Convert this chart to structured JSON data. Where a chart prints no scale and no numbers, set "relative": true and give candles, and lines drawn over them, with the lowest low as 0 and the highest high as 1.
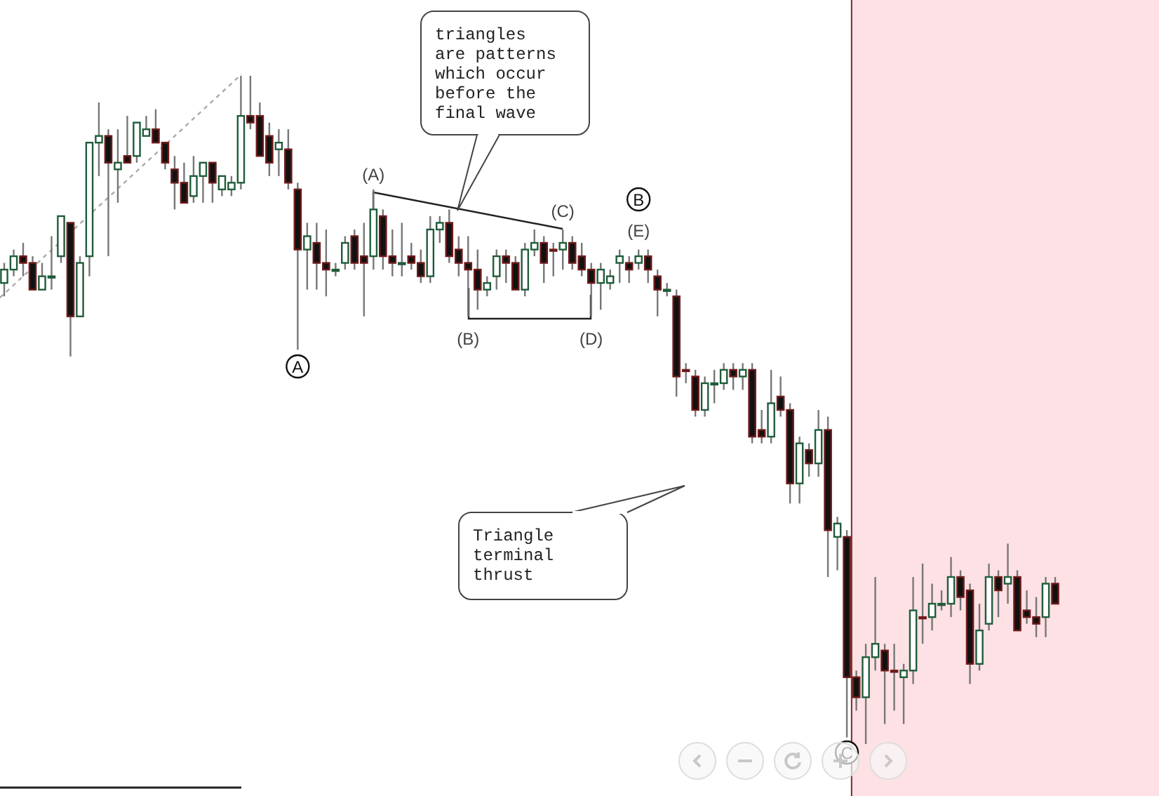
{
  "chart_data": {
    "type": "candlestick",
    "relative": true,
    "colors": [
      "#1f5c3a",
      "#1f5c3a",
      "#6e1a1a",
      "#6e1a1a",
      "#1f5c3a",
      "#1f5c3a",
      "#1f5c3a",
      "#6e1a1a",
      "#1f5c3a",
      "#1f5c3a",
      "#1f5c3a",
      "#6e1a1a",
      "#1f5c3a",
      "#6e1a1a",
      "#1f5c3a",
      "#1f5c3a",
      "#6e1a1a",
      "#6e1a1a",
      "#6e1a1a",
      "#6e1a1a",
      "#1f5c3a",
      "#1f5c3a",
      "#6e1a1a",
      "#1f5c3a",
      "#1f5c3a",
      "#1f5c3a",
      "#6e1a1a",
      "#6e1a1a",
      "#6e1a1a",
      "#1f5c3a",
      "#6e1a1a",
      "#6e1a1a",
      "#1f5c3a",
      "#6e1a1a",
      "#6e1a1a",
      "#1f5c3a",
      "#1f5c3a",
      "#6e1a1a",
      "#6e1a1a",
      "#1f5c3a",
      "#6e1a1a",
      "#6e1a1a",
      "#1f5c3a",
      "#6e1a1a",
      "#6e1a1a",
      "#1f5c3a",
      "#1f5c3a",
      "#6e1a1a",
      "#6e1a1a",
      "#6e1a1a",
      "#6e1a1a",
      "#1f5c3a",
      "#1f5c3a",
      "#6e1a1a",
      "#6e1a1a",
      "#1f5c3a",
      "#1f5c3a",
      "#6e1a1a",
      "#6e1a1a",
      "#1f5c3a",
      "#6e1a1a",
      "#6e1a1a",
      "#6e1a1a",
      "#1f5c3a",
      "#1f5c3a",
      "#1f5c3a",
      "#6e1a1a",
      "#1f5c3a",
      "#6e1a1a",
      "#6e1a1a",
      "#1f5c3a",
      "#6e1a1a",
      "#6e1a1a",
      "#6e1a1a",
      "#1f5c3a",
      "#1f5c3a",
      "#1f5c3a",
      "#6e1a1a",
      "#1f5c3a",
      "#6e1a1a",
      "#6e1a1a",
      "#1f5c3a",
      "#6e1a1a",
      "#6e1a1a",
      "#1f5c3a",
      "#6e1a1a",
      "#1f5c3a",
      "#6e1a1a",
      "#1f5c3a",
      "#6e1a1a",
      "#6e1a1a",
      "#1f5c3a",
      "#1f5c3a",
      "#6e1a1a",
      "#6e1a1a",
      "#1f5c3a",
      "#1f5c3a",
      "#6e1a1a",
      "#1f5c3a",
      "#1f5c3a",
      "#1f5c3a",
      "#6e1a1a",
      "#6e1a1a",
      "#1f5c3a",
      "#1f5c3a",
      "#6e1a1a",
      "#1f5c3a",
      "#6e1a1a",
      "#6e1a1a",
      "#6e1a1a",
      "#1f5c3a",
      "#6e1a1a"
    ],
    "categories": [
      null,
      null,
      null,
      null,
      null,
      null,
      null,
      null,
      null,
      null,
      null,
      null,
      null,
      null,
      null,
      null,
      null,
      null,
      null,
      null,
      null,
      null,
      null,
      null,
      null,
      null,
      null,
      null,
      null,
      null,
      null,
      null,
      null,
      null,
      null,
      null,
      null,
      null,
      null,
      null,
      null,
      null,
      null,
      null,
      null,
      null,
      null,
      null,
      null,
      null,
      null,
      null,
      null,
      null,
      null,
      null,
      null,
      null,
      null,
      null,
      null,
      null,
      null,
      null,
      null,
      null,
      null,
      null,
      null,
      null,
      null,
      null,
      null,
      null,
      null,
      null,
      null,
      null,
      null,
      null,
      null,
      null,
      null,
      null,
      null,
      null,
      null,
      null,
      null,
      null,
      null,
      null,
      null,
      null,
      null,
      null,
      null,
      null,
      null,
      null,
      null,
      null,
      null,
      null,
      null,
      null,
      null,
      null,
      null,
      null,
      null,
      null
    ],
    "ohlc": [
      [
        0.69,
        0.72,
        0.67,
        0.71
      ],
      [
        0.71,
        0.74,
        0.7,
        0.73
      ],
      [
        0.73,
        0.75,
        0.7,
        0.72
      ],
      [
        0.72,
        0.73,
        0.68,
        0.68
      ],
      [
        0.68,
        0.72,
        0.68,
        0.7
      ],
      [
        0.7,
        0.76,
        0.68,
        0.7
      ],
      [
        0.73,
        0.79,
        0.72,
        0.79
      ],
      [
        0.78,
        0.78,
        0.58,
        0.64
      ],
      [
        0.64,
        0.73,
        0.64,
        0.72
      ],
      [
        0.73,
        0.9,
        0.7,
        0.9
      ],
      [
        0.9,
        0.96,
        0.85,
        0.91
      ],
      [
        0.91,
        0.92,
        0.73,
        0.87
      ],
      [
        0.86,
        0.92,
        0.81,
        0.87
      ],
      [
        0.88,
        0.94,
        0.87,
        0.87
      ],
      [
        0.88,
        0.93,
        0.87,
        0.93
      ],
      [
        0.91,
        0.94,
        0.91,
        0.92
      ],
      [
        0.92,
        0.95,
        0.9,
        0.9
      ],
      [
        0.9,
        0.9,
        0.86,
        0.87
      ],
      [
        0.86,
        0.88,
        0.8,
        0.84
      ],
      [
        0.84,
        0.87,
        0.81,
        0.81
      ],
      [
        0.82,
        0.88,
        0.81,
        0.85
      ],
      [
        0.85,
        0.87,
        0.81,
        0.87
      ],
      [
        0.87,
        0.87,
        0.81,
        0.84
      ],
      [
        0.83,
        0.85,
        0.82,
        0.85
      ],
      [
        0.83,
        0.85,
        0.82,
        0.84
      ],
      [
        0.84,
        1.0,
        0.83,
        0.94
      ],
      [
        0.94,
        1.0,
        0.92,
        0.93
      ],
      [
        0.94,
        0.96,
        0.88,
        0.88
      ],
      [
        0.91,
        0.93,
        0.85,
        0.87
      ],
      [
        0.89,
        0.92,
        0.85,
        0.9
      ],
      [
        0.89,
        0.92,
        0.83,
        0.84
      ],
      [
        0.83,
        0.84,
        0.59,
        0.74
      ],
      [
        0.74,
        0.78,
        0.68,
        0.76
      ],
      [
        0.75,
        0.78,
        0.68,
        0.72
      ],
      [
        0.72,
        0.77,
        0.67,
        0.71
      ],
      [
        0.71,
        0.72,
        0.7,
        0.71
      ],
      [
        0.72,
        0.76,
        0.71,
        0.75
      ],
      [
        0.76,
        0.77,
        0.71,
        0.72
      ],
      [
        0.73,
        0.78,
        0.64,
        0.72
      ],
      [
        0.73,
        0.83,
        0.71,
        0.8
      ],
      [
        0.79,
        0.8,
        0.71,
        0.73
      ],
      [
        0.73,
        0.77,
        0.7,
        0.72
      ],
      [
        0.72,
        0.78,
        0.7,
        0.72
      ],
      [
        0.73,
        0.75,
        0.71,
        0.72
      ],
      [
        0.72,
        0.74,
        0.69,
        0.7
      ],
      [
        0.7,
        0.79,
        0.69,
        0.77
      ],
      [
        0.77,
        0.79,
        0.75,
        0.78
      ],
      [
        0.78,
        0.8,
        0.72,
        0.73
      ],
      [
        0.74,
        0.76,
        0.7,
        0.72
      ],
      [
        0.72,
        0.76,
        0.64,
        0.71
      ],
      [
        0.71,
        0.74,
        0.65,
        0.68
      ],
      [
        0.68,
        0.7,
        0.67,
        0.69
      ],
      [
        0.7,
        0.74,
        0.68,
        0.73
      ],
      [
        0.73,
        0.74,
        0.69,
        0.72
      ],
      [
        0.72,
        0.73,
        0.68,
        0.68
      ],
      [
        0.68,
        0.75,
        0.67,
        0.74
      ],
      [
        0.74,
        0.77,
        0.73,
        0.75
      ],
      [
        0.75,
        0.76,
        0.69,
        0.72
      ],
      [
        0.74,
        0.75,
        0.7,
        0.74
      ],
      [
        0.74,
        0.77,
        0.71,
        0.75
      ],
      [
        0.75,
        0.76,
        0.71,
        0.72
      ],
      [
        0.73,
        0.75,
        0.7,
        0.71
      ],
      [
        0.71,
        0.72,
        0.64,
        0.69
      ],
      [
        0.69,
        0.72,
        0.65,
        0.71
      ],
      [
        0.69,
        0.71,
        0.68,
        0.7
      ],
      [
        0.72,
        0.74,
        0.69,
        0.73
      ],
      [
        0.72,
        0.73,
        0.69,
        0.71
      ],
      [
        0.72,
        0.74,
        0.71,
        0.73
      ],
      [
        0.73,
        0.74,
        0.69,
        0.71
      ],
      [
        0.7,
        0.71,
        0.64,
        0.68
      ],
      [
        0.68,
        0.69,
        0.67,
        0.68
      ],
      [
        0.67,
        0.68,
        0.52,
        0.55
      ],
      [
        0.56,
        0.57,
        0.54,
        0.56
      ],
      [
        0.55,
        0.56,
        0.49,
        0.5
      ],
      [
        0.5,
        0.55,
        0.49,
        0.54
      ],
      [
        0.54,
        0.56,
        0.51,
        0.54
      ],
      [
        0.54,
        0.57,
        0.53,
        0.56
      ],
      [
        0.56,
        0.57,
        0.53,
        0.55
      ],
      [
        0.55,
        0.57,
        0.53,
        0.56
      ],
      [
        0.56,
        0.57,
        0.45,
        0.46
      ],
      [
        0.47,
        0.5,
        0.45,
        0.46
      ],
      [
        0.46,
        0.56,
        0.45,
        0.51
      ],
      [
        0.52,
        0.55,
        0.49,
        0.5
      ],
      [
        0.5,
        0.51,
        0.36,
        0.39
      ],
      [
        0.39,
        0.46,
        0.36,
        0.45
      ],
      [
        0.44,
        0.45,
        0.4,
        0.42
      ],
      [
        0.42,
        0.5,
        0.4,
        0.47
      ],
      [
        0.47,
        0.49,
        0.25,
        0.32
      ],
      [
        0.31,
        0.34,
        0.26,
        0.33
      ],
      [
        0.31,
        0.32,
        0.01,
        0.1
      ],
      [
        0.1,
        0.11,
        0.05,
        0.07
      ],
      [
        0.07,
        0.15,
        0.0,
        0.13
      ],
      [
        0.13,
        0.25,
        0.11,
        0.15
      ],
      [
        0.14,
        0.15,
        0.03,
        0.11
      ],
      [
        0.11,
        0.15,
        0.05,
        0.11
      ],
      [
        0.1,
        0.12,
        0.03,
        0.11
      ],
      [
        0.11,
        0.25,
        0.09,
        0.2
      ],
      [
        0.19,
        0.27,
        0.15,
        0.19
      ],
      [
        0.19,
        0.24,
        0.17,
        0.21
      ],
      [
        0.21,
        0.23,
        0.2,
        0.21
      ],
      [
        0.21,
        0.28,
        0.19,
        0.25
      ],
      [
        0.25,
        0.26,
        0.2,
        0.22
      ],
      [
        0.23,
        0.24,
        0.09,
        0.12
      ],
      [
        0.12,
        0.21,
        0.11,
        0.17
      ],
      [
        0.18,
        0.27,
        0.17,
        0.25
      ],
      [
        0.25,
        0.26,
        0.19,
        0.23
      ],
      [
        0.24,
        0.3,
        0.21,
        0.25
      ],
      [
        0.25,
        0.26,
        0.17,
        0.17
      ],
      [
        0.2,
        0.23,
        0.18,
        0.19
      ],
      [
        0.19,
        0.22,
        0.16,
        0.18
      ],
      [
        0.19,
        0.25,
        0.16,
        0.24
      ],
      [
        0.24,
        0.25,
        0.21,
        0.21
      ]
    ],
    "annotations": [
      "triangles are patterns which occur before the final wave",
      "Triangle terminal thrust",
      "(A)",
      "(B)",
      "(C)",
      "(D)",
      "(E)",
      "A",
      "B",
      "C"
    ]
  }
}
